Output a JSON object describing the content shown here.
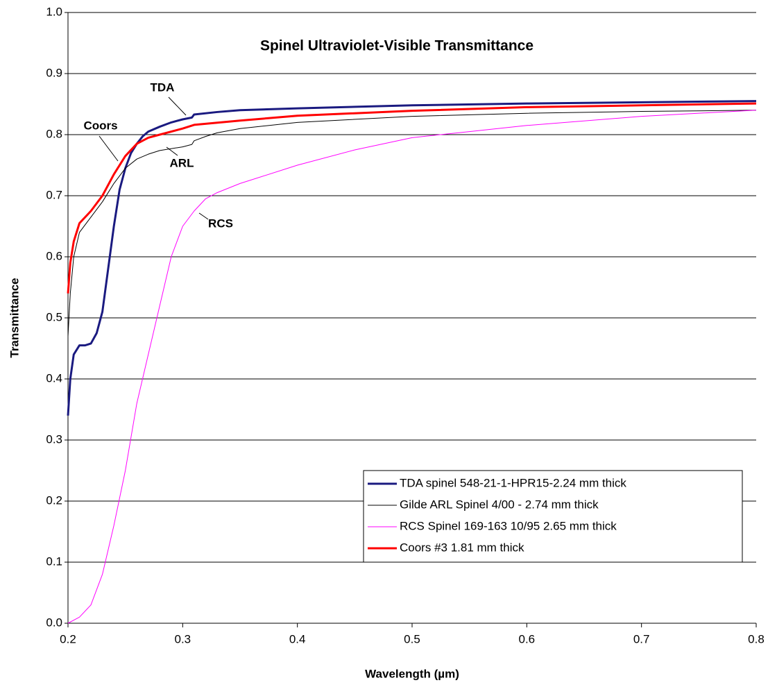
{
  "chart_data": {
    "type": "line",
    "title": "Spinel Ultraviolet-Visible Transmittance",
    "xlabel": "Wavelength (µm)",
    "ylabel": "Transmittance",
    "xlim": [
      0.2,
      0.8
    ],
    "xticks": [
      0.2,
      0.3,
      0.4,
      0.5,
      0.6,
      0.7,
      0.8
    ],
    "ylim": [
      0,
      1
    ],
    "yticks": [
      {
        "value": 0,
        "label": "0.0"
      },
      0.1,
      0.2,
      0.3,
      0.4,
      0.5,
      0.6,
      0.7,
      0.8,
      0.9,
      {
        "value": 1,
        "label": "1.0"
      }
    ],
    "grid": true,
    "legend": "lower right",
    "annotations": [
      "TDA",
      "Coors",
      "ARL",
      "RCS"
    ],
    "series": [
      {
        "name": "TDA spinel 548-21-1-HPR15-2.24 mm thick",
        "color": "#1a1a80",
        "width": 3,
        "x": [
          0.2,
          0.202,
          0.205,
          0.21,
          0.215,
          0.22,
          0.225,
          0.23,
          0.235,
          0.24,
          0.245,
          0.25,
          0.255,
          0.26,
          0.265,
          0.27,
          0.28,
          0.29,
          0.3,
          0.308,
          0.31,
          0.33,
          0.35,
          0.4,
          0.5,
          0.6,
          0.7,
          0.8
        ],
        "values": [
          0.34,
          0.4,
          0.44,
          0.455,
          0.455,
          0.458,
          0.475,
          0.51,
          0.58,
          0.65,
          0.71,
          0.745,
          0.77,
          0.785,
          0.797,
          0.805,
          0.813,
          0.82,
          0.825,
          0.828,
          0.833,
          0.837,
          0.84,
          0.843,
          0.848,
          0.851,
          0.853,
          0.855
        ]
      },
      {
        "name": "Gilde ARL Spinel 4/00 - 2.74 mm thick",
        "color": "#000000",
        "width": 1,
        "x": [
          0.2,
          0.202,
          0.205,
          0.21,
          0.22,
          0.23,
          0.24,
          0.25,
          0.26,
          0.27,
          0.28,
          0.3,
          0.308,
          0.31,
          0.32,
          0.33,
          0.35,
          0.4,
          0.5,
          0.6,
          0.7,
          0.8
        ],
        "values": [
          0.47,
          0.54,
          0.6,
          0.64,
          0.665,
          0.69,
          0.72,
          0.745,
          0.76,
          0.768,
          0.774,
          0.78,
          0.784,
          0.79,
          0.797,
          0.803,
          0.81,
          0.82,
          0.83,
          0.835,
          0.838,
          0.84
        ]
      },
      {
        "name": "RCS Spinel 169-163 10/95 2.65 mm thick",
        "color": "#ff00ff",
        "width": 1,
        "x": [
          0.2,
          0.21,
          0.22,
          0.23,
          0.24,
          0.25,
          0.26,
          0.27,
          0.28,
          0.29,
          0.3,
          0.31,
          0.32,
          0.33,
          0.35,
          0.4,
          0.45,
          0.5,
          0.55,
          0.6,
          0.7,
          0.8
        ],
        "values": [
          0,
          0.01,
          0.03,
          0.08,
          0.16,
          0.25,
          0.36,
          0.44,
          0.52,
          0.6,
          0.65,
          0.675,
          0.695,
          0.705,
          0.72,
          0.75,
          0.775,
          0.795,
          0.805,
          0.815,
          0.83,
          0.84
        ]
      },
      {
        "name": "Coors #3 1.81 mm thick",
        "color": "#ff0000",
        "width": 3,
        "x": [
          0.2,
          0.202,
          0.205,
          0.21,
          0.22,
          0.23,
          0.24,
          0.25,
          0.26,
          0.27,
          0.28,
          0.3,
          0.31,
          0.35,
          0.4,
          0.5,
          0.6,
          0.7,
          0.8
        ],
        "values": [
          0.54,
          0.59,
          0.625,
          0.655,
          0.675,
          0.7,
          0.735,
          0.765,
          0.785,
          0.795,
          0.8,
          0.81,
          0.816,
          0.823,
          0.831,
          0.839,
          0.845,
          0.848,
          0.851
        ]
      }
    ]
  }
}
